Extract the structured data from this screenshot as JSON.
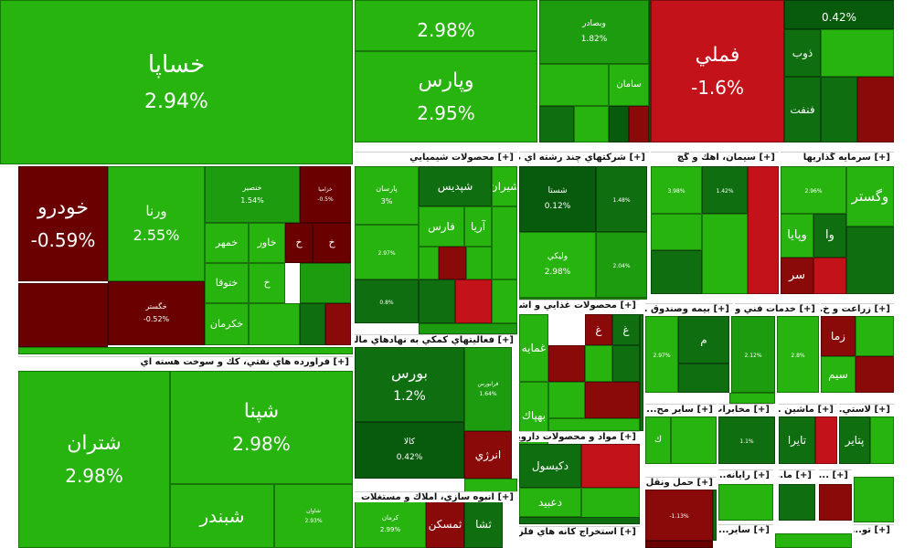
{
  "chart_data": {
    "type": "treemap",
    "colors": {
      "up_strong": "#27b40f",
      "up_mid": "#1e9c10",
      "up_low": "#0f6e10",
      "up_flat": "#085a0d",
      "down_low": "#6b0000",
      "down_mid": "#8a0a0a",
      "down_strong": "#c4121a"
    },
    "groups": [
      {
        "name": "[+] فراورده هاي نفتي، كك و سوخت هسته اي"
      },
      {
        "name": "[+] فعاليتهاي كمكي به نهادهاي مالي وا..."
      },
      {
        "name": "[+] انبوه سازي، املاك و مستغلات"
      },
      {
        "name": "[+] محصولات شيميايي"
      },
      {
        "name": "[+] شركتهاي چند رشته اي ص..."
      },
      {
        "name": "[+] محصولات غذايي و آشا..."
      },
      {
        "name": "[+] مواد و محصولات دارويي"
      },
      {
        "name": "[+] استخراج كانه هاي فلزي"
      },
      {
        "name": "[+] سيمان، آهك و گچ"
      },
      {
        "name": "[+] سرمايه گذاريها"
      },
      {
        "name": "[+] بيمه وصندوق ..."
      },
      {
        "name": "[+] خدمات فني و ..."
      },
      {
        "name": "[+] زراعت و خ..."
      },
      {
        "name": "[+] ساير مح..."
      },
      {
        "name": "[+] مخابرات"
      },
      {
        "name": "[+] ماشين ..."
      },
      {
        "name": "[+] لاستي..."
      },
      {
        "name": "[+] حمل ونقل..."
      },
      {
        "name": "[+] رايانه..."
      },
      {
        "name": "[+] ما..."
      },
      {
        "name": "[+] ..."
      },
      {
        "name": "[+] ساير..."
      },
      {
        "name": "[+] تو..."
      }
    ],
    "tiles": [
      {
        "symbol": "خساپا",
        "change": 2.94,
        "label": "2.94%"
      },
      {
        "symbol": "خودرو",
        "change": -0.59,
        "label": "-0.59%"
      },
      {
        "symbol": "ورنا",
        "change": 2.55,
        "label": "2.55%"
      },
      {
        "symbol": "خنصير",
        "change": 1.54,
        "label": "1.54%"
      },
      {
        "symbol": "خزامیا",
        "change": -0.5,
        "label": "-0.5%"
      },
      {
        "symbol": "خمهر",
        "change": 2.9,
        "label": ""
      },
      {
        "symbol": "خاور",
        "change": 2.9,
        "label": ""
      },
      {
        "symbol": "خ",
        "change": -0.5,
        "label": ""
      },
      {
        "symbol": "خ",
        "change": -0.6,
        "label": ""
      },
      {
        "symbol": "ختوقا",
        "change": 2.9,
        "label": ""
      },
      {
        "symbol": "خ",
        "change": 2.9,
        "label": ""
      },
      {
        "symbol": "خگستر",
        "change": -0.52,
        "label": "-0.52%"
      },
      {
        "symbol": "خكرمان",
        "change": 2.9,
        "label": ""
      },
      {
        "symbol": "",
        "change": 2.98,
        "label": "2.98%"
      },
      {
        "symbol": "وپارس",
        "change": 2.95,
        "label": "2.95%"
      },
      {
        "symbol": "وبصادر",
        "change": 1.82,
        "label": "1.82%"
      },
      {
        "symbol": "سامان",
        "change": 2.9,
        "label": ""
      },
      {
        "symbol": "فملي",
        "change": -1.6,
        "label": "-1.6%"
      },
      {
        "symbol": "",
        "change": 0.42,
        "label": "0.42%"
      },
      {
        "symbol": "ذوب",
        "change": 1.0,
        "label": ""
      },
      {
        "symbol": "فنفت",
        "change": 1.0,
        "label": ""
      },
      {
        "symbol": "شپنا",
        "change": 2.98,
        "label": "2.98%"
      },
      {
        "symbol": "شتران",
        "change": 2.98,
        "label": "2.98%"
      },
      {
        "symbol": "شاوان",
        "change": 2.93,
        "label": "2.93%"
      },
      {
        "symbol": "شبندر",
        "change": 2.9,
        "label": ""
      },
      {
        "symbol": "پارسان",
        "change": 3.0,
        "label": "3%"
      },
      {
        "symbol": "شپديس",
        "change": 1.0,
        "label": ""
      },
      {
        "symbol": "شيران",
        "change": 2.9,
        "label": ""
      },
      {
        "symbol": "فارس",
        "change": 2.9,
        "label": ""
      },
      {
        "symbol": "آريا",
        "change": 2.9,
        "label": ""
      },
      {
        "symbol": "",
        "change": 2.97,
        "label": "2.97%"
      },
      {
        "symbol": "",
        "change": 0.8,
        "label": "0.8%"
      },
      {
        "symbol": "شستا",
        "change": 0.12,
        "label": "0.12%"
      },
      {
        "symbol": "",
        "change": 1.48,
        "label": "1.48%"
      },
      {
        "symbol": "وليكي",
        "change": 2.98,
        "label": "2.98%"
      },
      {
        "symbol": "",
        "change": 2.04,
        "label": "2.04%"
      },
      {
        "symbol": "",
        "change": 3.98,
        "label": "3.98%"
      },
      {
        "symbol": "",
        "change": 1.42,
        "label": "1.42%"
      },
      {
        "symbol": "وگستر",
        "change": 2.9,
        "label": ""
      },
      {
        "symbol": "",
        "change": 2.96,
        "label": "2.96%"
      },
      {
        "symbol": "وپايا",
        "change": 2.9,
        "label": ""
      },
      {
        "symbol": "وا",
        "change": 1.0,
        "label": ""
      },
      {
        "symbol": "سر",
        "change": -1.0,
        "label": ""
      },
      {
        "symbol": "بورس",
        "change": 1.2,
        "label": "1.2%"
      },
      {
        "symbol": "فرابورس",
        "change": 1.64,
        "label": "1.64%"
      },
      {
        "symbol": "كالا",
        "change": 0.42,
        "label": "0.42%"
      },
      {
        "symbol": "انرژي",
        "change": -1.0,
        "label": ""
      },
      {
        "symbol": "ثشا",
        "change": 1.0,
        "label": ""
      },
      {
        "symbol": "ثمسكن",
        "change": -1.0,
        "label": ""
      },
      {
        "symbol": "كرمان",
        "change": 2.99,
        "label": "2.99%"
      },
      {
        "symbol": "غمايه",
        "change": 2.9,
        "label": ""
      },
      {
        "symbol": "بهپاك",
        "change": 2.9,
        "label": ""
      },
      {
        "symbol": "غ",
        "change": -1.0,
        "label": ""
      },
      {
        "symbol": "غ",
        "change": 1.0,
        "label": ""
      },
      {
        "symbol": "دكيسول",
        "change": 1.0,
        "label": ""
      },
      {
        "symbol": "دعبيد",
        "change": 2.9,
        "label": ""
      },
      {
        "symbol": "",
        "change": 2.97,
        "label": "2.97%"
      },
      {
        "symbol": "م",
        "change": 1.0,
        "label": ""
      },
      {
        "symbol": "",
        "change": 2.12,
        "label": "2.12%"
      },
      {
        "symbol": "",
        "change": 2.8,
        "label": "2.8%"
      },
      {
        "symbol": "زما",
        "change": -1.0,
        "label": ""
      },
      {
        "symbol": "سيم",
        "change": 2.9,
        "label": ""
      },
      {
        "symbol": "ك",
        "change": 2.9,
        "label": ""
      },
      {
        "symbol": "",
        "change": 1.1,
        "label": "1.1%"
      },
      {
        "symbol": "تايرا",
        "change": 1.0,
        "label": ""
      },
      {
        "symbol": "پتاير",
        "change": 1.0,
        "label": ""
      },
      {
        "symbol": "",
        "change": -1.13,
        "label": "-1.13%"
      }
    ]
  }
}
